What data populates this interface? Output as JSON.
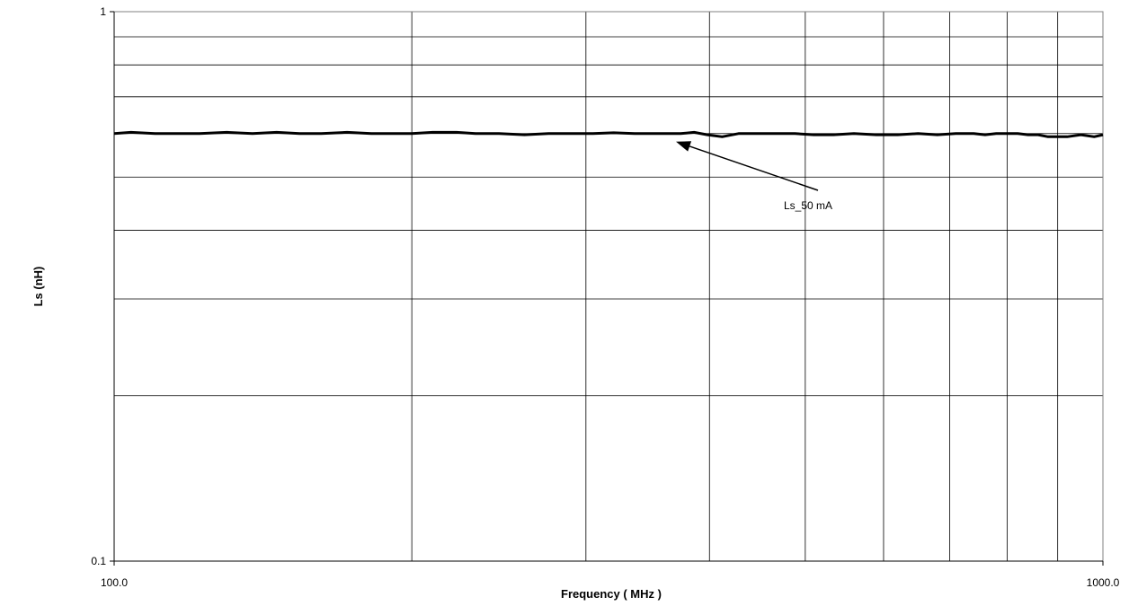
{
  "chart_data": {
    "type": "line",
    "xlabel": "Frequency ( MHz )",
    "ylabel": "Ls (nH)",
    "x_scale": "log",
    "y_scale": "log",
    "xlim": [
      100,
      1000
    ],
    "ylim": [
      0.1,
      1
    ],
    "x_tick_labels": [
      "100.0",
      "1000.0"
    ],
    "y_tick_labels": [
      "0.1",
      "1"
    ],
    "grid": true,
    "annotation": {
      "text": "Ls_50 mA",
      "arrow_to": [
        370,
        0.58
      ]
    },
    "series": [
      {
        "color": "#000000",
        "x": [
          100,
          104,
          110,
          116,
          122,
          130,
          138,
          146,
          154,
          162,
          172,
          182,
          190,
          200,
          210,
          222,
          232,
          245,
          260,
          275,
          290,
          305,
          320,
          336,
          350,
          362,
          374,
          386,
          398,
          412,
          428,
          446,
          466,
          488,
          510,
          534,
          560,
          590,
          620,
          650,
          680,
          710,
          740,
          760,
          780,
          800,
          820,
          840,
          860,
          880,
          900,
          920,
          950,
          980,
          1000
        ],
        "y": [
          0.6,
          0.603,
          0.6,
          0.6,
          0.6,
          0.603,
          0.6,
          0.603,
          0.6,
          0.6,
          0.603,
          0.6,
          0.6,
          0.6,
          0.603,
          0.603,
          0.6,
          0.6,
          0.597,
          0.6,
          0.6,
          0.6,
          0.602,
          0.6,
          0.6,
          0.6,
          0.6,
          0.603,
          0.597,
          0.592,
          0.6,
          0.6,
          0.6,
          0.6,
          0.597,
          0.597,
          0.6,
          0.597,
          0.597,
          0.6,
          0.597,
          0.6,
          0.6,
          0.597,
          0.6,
          0.6,
          0.6,
          0.597,
          0.597,
          0.592,
          0.592,
          0.592,
          0.597,
          0.592,
          0.597
        ]
      }
    ]
  }
}
